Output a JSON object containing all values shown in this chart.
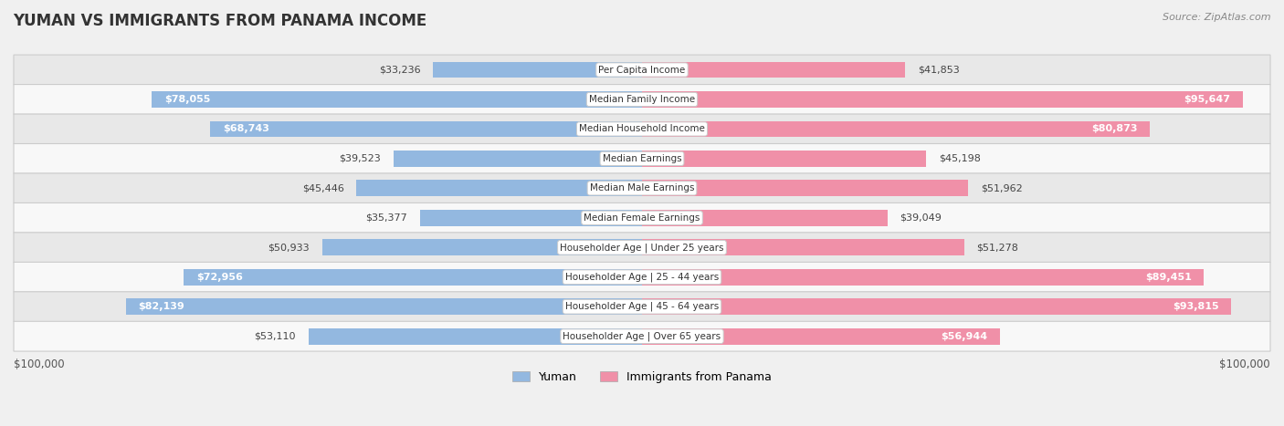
{
  "title": "YUMAN VS IMMIGRANTS FROM PANAMA INCOME",
  "source": "Source: ZipAtlas.com",
  "categories": [
    "Per Capita Income",
    "Median Family Income",
    "Median Household Income",
    "Median Earnings",
    "Median Male Earnings",
    "Median Female Earnings",
    "Householder Age | Under 25 years",
    "Householder Age | 25 - 44 years",
    "Householder Age | 45 - 64 years",
    "Householder Age | Over 65 years"
  ],
  "yuman_values": [
    33236,
    78055,
    68743,
    39523,
    45446,
    35377,
    50933,
    72956,
    82139,
    53110
  ],
  "panama_values": [
    41853,
    95647,
    80873,
    45198,
    51962,
    39049,
    51278,
    89451,
    93815,
    56944
  ],
  "yuman_labels": [
    "$33,236",
    "$78,055",
    "$68,743",
    "$39,523",
    "$45,446",
    "$35,377",
    "$50,933",
    "$72,956",
    "$82,139",
    "$53,110"
  ],
  "panama_labels": [
    "$41,853",
    "$95,647",
    "$80,873",
    "$45,198",
    "$51,962",
    "$39,049",
    "$51,278",
    "$89,451",
    "$93,815",
    "$56,944"
  ],
  "max_value": 100000,
  "yuman_color": "#93b8e0",
  "panama_color": "#f090a8",
  "bar_height": 0.55,
  "background_color": "#f0f0f0",
  "legend_yuman": "Yuman",
  "legend_panama": "Immigrants from Panama",
  "xlabel_left": "$100,000",
  "xlabel_right": "$100,000",
  "inside_label_threshold": 55000,
  "inside_label_color": "white",
  "outside_label_color": "#444444",
  "label_fontsize": 8.0,
  "cat_label_fontsize": 7.5
}
